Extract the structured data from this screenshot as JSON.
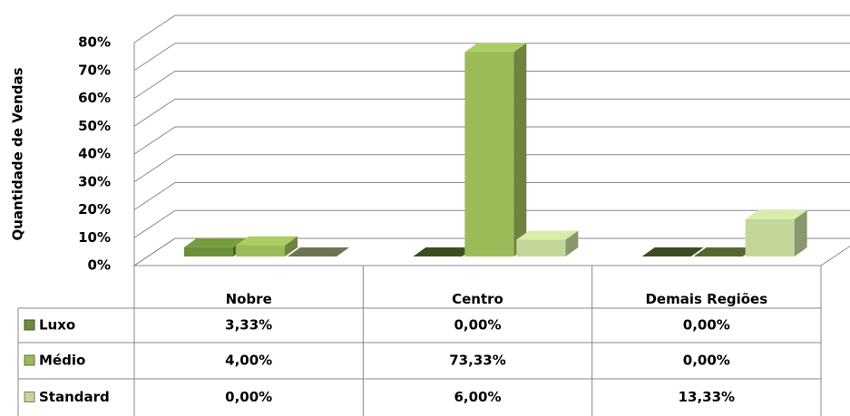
{
  "chart_data": {
    "type": "bar3d",
    "y_label": "Quantidade de Vendas",
    "categories": [
      "Nobre",
      "Centro",
      "Demais Regiões"
    ],
    "series": [
      {
        "name": "Luxo",
        "color": "#6b8e3a",
        "values": [
          3.33,
          0,
          0
        ],
        "value_labels": [
          "3,33%",
          "0,00%",
          "0,00%"
        ]
      },
      {
        "name": "Médio",
        "color": "#9bbb59",
        "values": [
          4,
          73.33,
          0
        ],
        "value_labels": [
          "4,00%",
          "73,33%",
          "0,00%"
        ]
      },
      {
        "name": "Standard",
        "color": "#c4d79b",
        "values": [
          0,
          6,
          13.33
        ],
        "value_labels": [
          "0,00%",
          "6,00%",
          "13,33%"
        ]
      }
    ],
    "ylim": [
      0,
      80
    ],
    "yticks": [
      {
        "value": 0,
        "label": "0%"
      },
      {
        "value": 10,
        "label": "10%"
      },
      {
        "value": 20,
        "label": "20%"
      },
      {
        "value": 30,
        "label": "30%"
      },
      {
        "value": 40,
        "label": "40%"
      },
      {
        "value": 50,
        "label": "50%"
      },
      {
        "value": 60,
        "label": "60%"
      },
      {
        "value": 70,
        "label": "70%"
      },
      {
        "value": 80,
        "label": "80%"
      }
    ],
    "grid": true
  }
}
